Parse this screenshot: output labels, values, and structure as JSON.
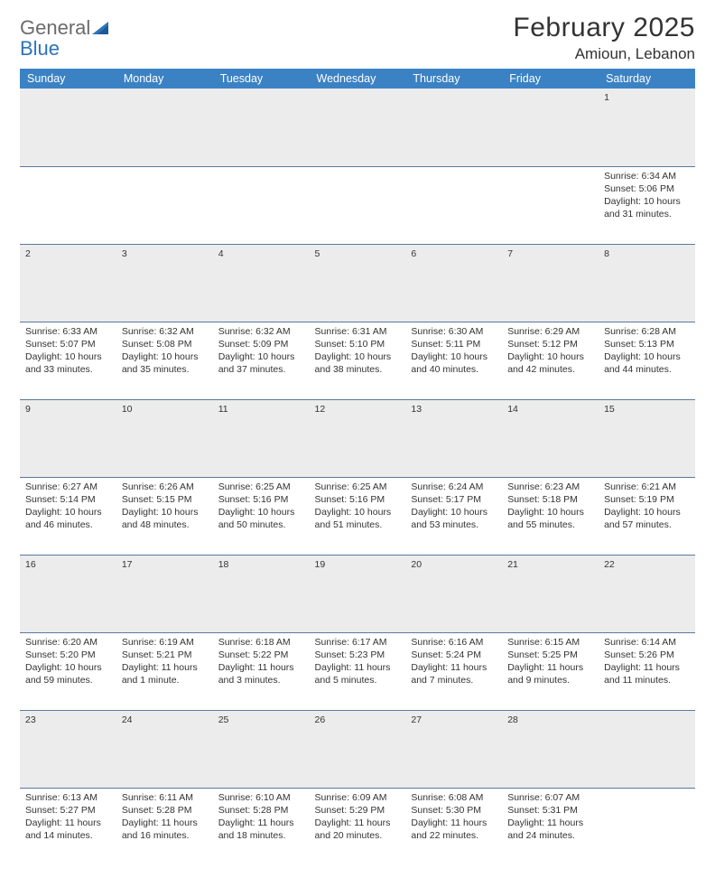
{
  "brand": {
    "part1": "General",
    "part2": "Blue"
  },
  "title": "February 2025",
  "location": "Amioun, Lebanon",
  "colors": {
    "header_bg": "#3b82c4",
    "header_text": "#ffffff",
    "daynum_bg": "#ececec",
    "row_divider": "#5a7a9a",
    "body_text": "#333333",
    "logo_gray": "#6b6b6b",
    "logo_blue": "#2d73b8",
    "background": "#ffffff"
  },
  "fonts": {
    "title_size": 30,
    "location_size": 17,
    "weekday_size": 12.5,
    "cell_size": 10.5,
    "daynum_size": 11.5
  },
  "weekdays": [
    "Sunday",
    "Monday",
    "Tuesday",
    "Wednesday",
    "Thursday",
    "Friday",
    "Saturday"
  ],
  "weeks": [
    {
      "nums": [
        "",
        "",
        "",
        "",
        "",
        "",
        "1"
      ],
      "cells": [
        {
          "sunrise": "",
          "sunset": "",
          "daylight1": "",
          "daylight2": ""
        },
        {
          "sunrise": "",
          "sunset": "",
          "daylight1": "",
          "daylight2": ""
        },
        {
          "sunrise": "",
          "sunset": "",
          "daylight1": "",
          "daylight2": ""
        },
        {
          "sunrise": "",
          "sunset": "",
          "daylight1": "",
          "daylight2": ""
        },
        {
          "sunrise": "",
          "sunset": "",
          "daylight1": "",
          "daylight2": ""
        },
        {
          "sunrise": "",
          "sunset": "",
          "daylight1": "",
          "daylight2": ""
        },
        {
          "sunrise": "Sunrise: 6:34 AM",
          "sunset": "Sunset: 5:06 PM",
          "daylight1": "Daylight: 10 hours",
          "daylight2": "and 31 minutes."
        }
      ]
    },
    {
      "nums": [
        "2",
        "3",
        "4",
        "5",
        "6",
        "7",
        "8"
      ],
      "cells": [
        {
          "sunrise": "Sunrise: 6:33 AM",
          "sunset": "Sunset: 5:07 PM",
          "daylight1": "Daylight: 10 hours",
          "daylight2": "and 33 minutes."
        },
        {
          "sunrise": "Sunrise: 6:32 AM",
          "sunset": "Sunset: 5:08 PM",
          "daylight1": "Daylight: 10 hours",
          "daylight2": "and 35 minutes."
        },
        {
          "sunrise": "Sunrise: 6:32 AM",
          "sunset": "Sunset: 5:09 PM",
          "daylight1": "Daylight: 10 hours",
          "daylight2": "and 37 minutes."
        },
        {
          "sunrise": "Sunrise: 6:31 AM",
          "sunset": "Sunset: 5:10 PM",
          "daylight1": "Daylight: 10 hours",
          "daylight2": "and 38 minutes."
        },
        {
          "sunrise": "Sunrise: 6:30 AM",
          "sunset": "Sunset: 5:11 PM",
          "daylight1": "Daylight: 10 hours",
          "daylight2": "and 40 minutes."
        },
        {
          "sunrise": "Sunrise: 6:29 AM",
          "sunset": "Sunset: 5:12 PM",
          "daylight1": "Daylight: 10 hours",
          "daylight2": "and 42 minutes."
        },
        {
          "sunrise": "Sunrise: 6:28 AM",
          "sunset": "Sunset: 5:13 PM",
          "daylight1": "Daylight: 10 hours",
          "daylight2": "and 44 minutes."
        }
      ]
    },
    {
      "nums": [
        "9",
        "10",
        "11",
        "12",
        "13",
        "14",
        "15"
      ],
      "cells": [
        {
          "sunrise": "Sunrise: 6:27 AM",
          "sunset": "Sunset: 5:14 PM",
          "daylight1": "Daylight: 10 hours",
          "daylight2": "and 46 minutes."
        },
        {
          "sunrise": "Sunrise: 6:26 AM",
          "sunset": "Sunset: 5:15 PM",
          "daylight1": "Daylight: 10 hours",
          "daylight2": "and 48 minutes."
        },
        {
          "sunrise": "Sunrise: 6:25 AM",
          "sunset": "Sunset: 5:16 PM",
          "daylight1": "Daylight: 10 hours",
          "daylight2": "and 50 minutes."
        },
        {
          "sunrise": "Sunrise: 6:25 AM",
          "sunset": "Sunset: 5:16 PM",
          "daylight1": "Daylight: 10 hours",
          "daylight2": "and 51 minutes."
        },
        {
          "sunrise": "Sunrise: 6:24 AM",
          "sunset": "Sunset: 5:17 PM",
          "daylight1": "Daylight: 10 hours",
          "daylight2": "and 53 minutes."
        },
        {
          "sunrise": "Sunrise: 6:23 AM",
          "sunset": "Sunset: 5:18 PM",
          "daylight1": "Daylight: 10 hours",
          "daylight2": "and 55 minutes."
        },
        {
          "sunrise": "Sunrise: 6:21 AM",
          "sunset": "Sunset: 5:19 PM",
          "daylight1": "Daylight: 10 hours",
          "daylight2": "and 57 minutes."
        }
      ]
    },
    {
      "nums": [
        "16",
        "17",
        "18",
        "19",
        "20",
        "21",
        "22"
      ],
      "cells": [
        {
          "sunrise": "Sunrise: 6:20 AM",
          "sunset": "Sunset: 5:20 PM",
          "daylight1": "Daylight: 10 hours",
          "daylight2": "and 59 minutes."
        },
        {
          "sunrise": "Sunrise: 6:19 AM",
          "sunset": "Sunset: 5:21 PM",
          "daylight1": "Daylight: 11 hours",
          "daylight2": "and 1 minute."
        },
        {
          "sunrise": "Sunrise: 6:18 AM",
          "sunset": "Sunset: 5:22 PM",
          "daylight1": "Daylight: 11 hours",
          "daylight2": "and 3 minutes."
        },
        {
          "sunrise": "Sunrise: 6:17 AM",
          "sunset": "Sunset: 5:23 PM",
          "daylight1": "Daylight: 11 hours",
          "daylight2": "and 5 minutes."
        },
        {
          "sunrise": "Sunrise: 6:16 AM",
          "sunset": "Sunset: 5:24 PM",
          "daylight1": "Daylight: 11 hours",
          "daylight2": "and 7 minutes."
        },
        {
          "sunrise": "Sunrise: 6:15 AM",
          "sunset": "Sunset: 5:25 PM",
          "daylight1": "Daylight: 11 hours",
          "daylight2": "and 9 minutes."
        },
        {
          "sunrise": "Sunrise: 6:14 AM",
          "sunset": "Sunset: 5:26 PM",
          "daylight1": "Daylight: 11 hours",
          "daylight2": "and 11 minutes."
        }
      ]
    },
    {
      "nums": [
        "23",
        "24",
        "25",
        "26",
        "27",
        "28",
        ""
      ],
      "cells": [
        {
          "sunrise": "Sunrise: 6:13 AM",
          "sunset": "Sunset: 5:27 PM",
          "daylight1": "Daylight: 11 hours",
          "daylight2": "and 14 minutes."
        },
        {
          "sunrise": "Sunrise: 6:11 AM",
          "sunset": "Sunset: 5:28 PM",
          "daylight1": "Daylight: 11 hours",
          "daylight2": "and 16 minutes."
        },
        {
          "sunrise": "Sunrise: 6:10 AM",
          "sunset": "Sunset: 5:28 PM",
          "daylight1": "Daylight: 11 hours",
          "daylight2": "and 18 minutes."
        },
        {
          "sunrise": "Sunrise: 6:09 AM",
          "sunset": "Sunset: 5:29 PM",
          "daylight1": "Daylight: 11 hours",
          "daylight2": "and 20 minutes."
        },
        {
          "sunrise": "Sunrise: 6:08 AM",
          "sunset": "Sunset: 5:30 PM",
          "daylight1": "Daylight: 11 hours",
          "daylight2": "and 22 minutes."
        },
        {
          "sunrise": "Sunrise: 6:07 AM",
          "sunset": "Sunset: 5:31 PM",
          "daylight1": "Daylight: 11 hours",
          "daylight2": "and 24 minutes."
        },
        {
          "sunrise": "",
          "sunset": "",
          "daylight1": "",
          "daylight2": ""
        }
      ]
    }
  ]
}
